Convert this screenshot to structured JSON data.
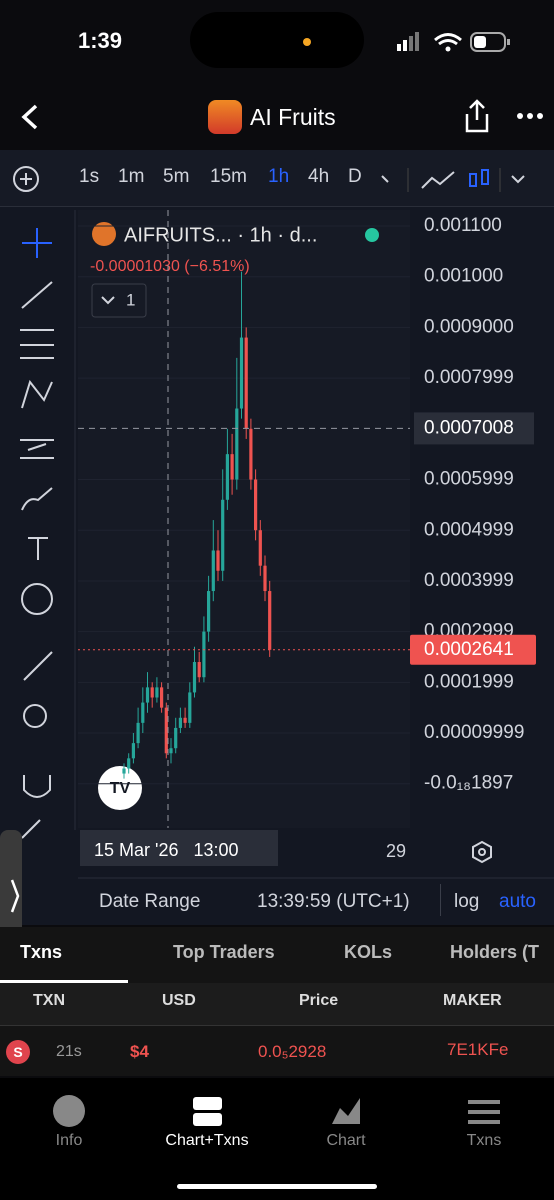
{
  "status": {
    "time": "1:39"
  },
  "header": {
    "title": "AI Fruits"
  },
  "timeframes": [
    "1s",
    "1m",
    "5m",
    "15m",
    "1h",
    "4h",
    "D"
  ],
  "active_timeframe": "1h",
  "chart_data": {
    "type": "candlestick",
    "title": "AIFRUITS... · 1h · d...",
    "change": "-0.00001030 (−6.51%)",
    "indicator_count": "1",
    "open": [
      2e-05,
      3e-05,
      5e-05,
      8e-05,
      0.00012,
      0.00016,
      0.00019,
      0.00017,
      0.00019,
      0.00015,
      6e-05,
      7e-05,
      0.00011,
      0.00013,
      0.00012,
      0.00018,
      0.00024,
      0.00021,
      0.0003,
      0.00038,
      0.00046,
      0.00042,
      0.00056,
      0.00065,
      0.0006,
      0.00074,
      0.00088,
      0.0007,
      0.0006,
      0.0005,
      0.00043,
      0.00038
    ],
    "high": [
      4e-05,
      6e-05,
      0.0001,
      0.00015,
      0.00019,
      0.00022,
      0.0002,
      0.00021,
      0.0002,
      0.00016,
      9e-05,
      0.00013,
      0.00015,
      0.00015,
      0.0002,
      0.00027,
      0.00026,
      0.00033,
      0.00041,
      0.00052,
      0.0005,
      0.00062,
      0.0007,
      0.00069,
      0.00084,
      0.00101,
      0.0009,
      0.00072,
      0.00062,
      0.00052,
      0.00045,
      0.0004
    ],
    "low": [
      1e-05,
      2e-05,
      4e-05,
      7e-05,
      0.0001,
      0.00014,
      0.00015,
      0.00016,
      0.00014,
      5e-05,
      4e-05,
      6e-05,
      0.0001,
      0.00011,
      0.00011,
      0.00017,
      0.0002,
      0.0002,
      0.00028,
      0.00036,
      0.0004,
      0.0004,
      0.00054,
      0.00057,
      0.00058,
      0.00072,
      0.00068,
      0.00058,
      0.00048,
      0.00041,
      0.00036,
      0.00025
    ],
    "close": [
      3e-05,
      5e-05,
      8e-05,
      0.00012,
      0.00016,
      0.00019,
      0.00017,
      0.00019,
      0.00015,
      6e-05,
      7e-05,
      0.00011,
      0.00013,
      0.00012,
      0.00018,
      0.00024,
      0.00021,
      0.0003,
      0.00038,
      0.00046,
      0.00042,
      0.00056,
      0.00065,
      0.0006,
      0.00074,
      0.00088,
      0.0007,
      0.0006,
      0.0005,
      0.00043,
      0.00038,
      0.0002641
    ],
    "up_color": "#26a69a",
    "down_color": "#ef5350",
    "ylim": [
      -8.74e-05,
      0.0011316
    ],
    "yticks": [
      {
        "value": 0.0011,
        "label": "0.001100"
      },
      {
        "value": 0.001,
        "label": "0.001000"
      },
      {
        "value": 0.0009,
        "label": "0.0009000"
      },
      0.0007999,
      0.0005999,
      0.0004999,
      0.0003999,
      0.0002999,
      0.0001999,
      9.999e-05,
      {
        "value": -1.897e-18,
        "label": "-0.0₁₈1897"
      }
    ],
    "crosshair_price": 0.0007008,
    "last_price": 0.0002641,
    "crosshair_time": "15 Mar '26   13:00",
    "x_label": "29",
    "grid": true
  },
  "chart_footer": {
    "date_range": "Date Range",
    "time": "13:39:59 (UTC+1)",
    "log": "log",
    "auto": "auto"
  },
  "tabs": [
    "Txns",
    "Top Traders",
    "KOLs",
    "Holders (T"
  ],
  "table": {
    "columns": [
      "TXN",
      "USD",
      "Price",
      "MAKER"
    ],
    "rows": [
      [
        "S",
        "21s",
        "$4",
        "0.0₅2928",
        "7E1KFe"
      ]
    ]
  },
  "nav": [
    "Info",
    "Chart+Txns",
    "Chart",
    "Txns"
  ]
}
